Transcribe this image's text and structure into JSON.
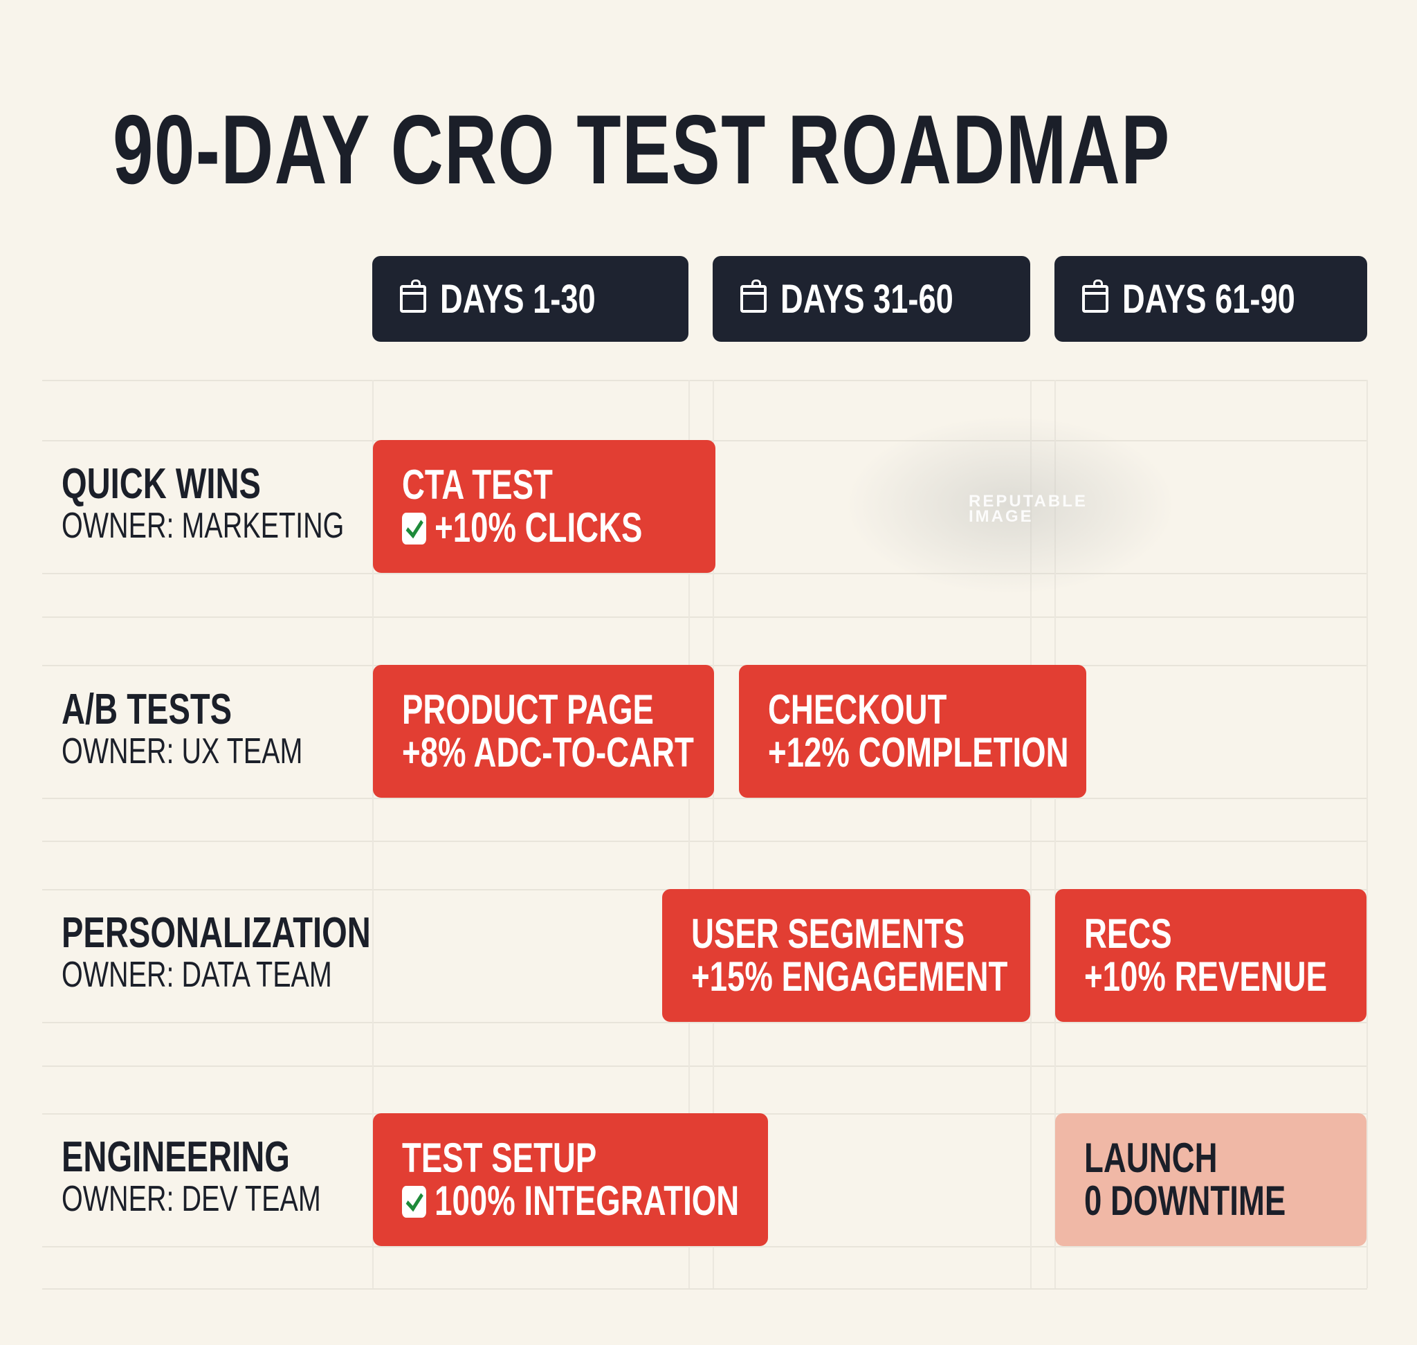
{
  "title": "90-DAY CRO TEST ROADMAP",
  "periods": [
    {
      "label": "DAYS 1-30",
      "icon": "calendar-icon"
    },
    {
      "label": "DAYS 31-60",
      "icon": "calendar-icon"
    },
    {
      "label": "DAYS 61-90",
      "icon": "calendar-icon"
    }
  ],
  "rows": [
    {
      "name": "QUICK WINS",
      "owner": "OWNER: MARKETING"
    },
    {
      "name": "A/B TESTS",
      "owner": "OWNER: UX TEAM"
    },
    {
      "name": "PERSONALIZATION",
      "owner": "OWNER: DATA TEAM"
    },
    {
      "name": "ENGINEERING",
      "owner": "OWNER: DEV TEAM"
    }
  ],
  "tasks": [
    {
      "title": "CTA TEST",
      "result": "+10% CLICKS",
      "checked": true,
      "status": "active"
    },
    {
      "title": "PRODUCT PAGE",
      "result": "+8% ADC-TO-CART",
      "checked": false,
      "status": "active"
    },
    {
      "title": "CHECKOUT",
      "result": "+12% COMPLETION",
      "checked": false,
      "status": "active"
    },
    {
      "title": "USER SEGMENTS",
      "result": "+15% ENGAGEMENT",
      "checked": false,
      "status": "active"
    },
    {
      "title": "RECS",
      "result": "+10% REVENUE",
      "checked": false,
      "status": "active"
    },
    {
      "title": "TEST SETUP",
      "result": "100% INTEGRATION",
      "checked": true,
      "status": "active"
    },
    {
      "title": "LAUNCH",
      "result": "0 DOWNTIME",
      "checked": false,
      "status": "planned"
    }
  ],
  "colors": {
    "header": "#1e2330",
    "task": "#e23e33",
    "planned": "#f0b8a6",
    "background": "#f8f4eb",
    "check": "#1e8a3a"
  },
  "watermark": {
    "line1": "REPUTABLE",
    "line2": "IMAGE"
  }
}
